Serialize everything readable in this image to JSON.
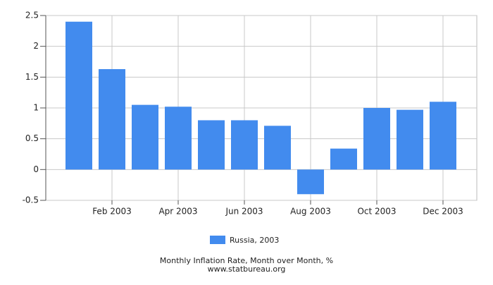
{
  "chart_data": {
    "type": "bar",
    "title": "Monthly Inflation Rate, Month over Month, %",
    "source": "www.statbureau.org",
    "categories": [
      null,
      "Feb 2003",
      null,
      "Apr 2003",
      null,
      "Jun 2003",
      null,
      "Aug 2003",
      null,
      "Oct 2003",
      null,
      "Dec 2003"
    ],
    "series": [
      {
        "name": "Russia, 2003",
        "color": "#428bee",
        "values": [
          2.4,
          1.63,
          1.05,
          1.02,
          0.8,
          0.8,
          0.71,
          -0.4,
          0.34,
          1.0,
          0.97,
          1.1
        ]
      }
    ],
    "ylim": [
      -0.5,
      2.5
    ],
    "yticks": [
      -0.5,
      0,
      0.5,
      1,
      1.5,
      2,
      2.5
    ],
    "grid": true
  }
}
